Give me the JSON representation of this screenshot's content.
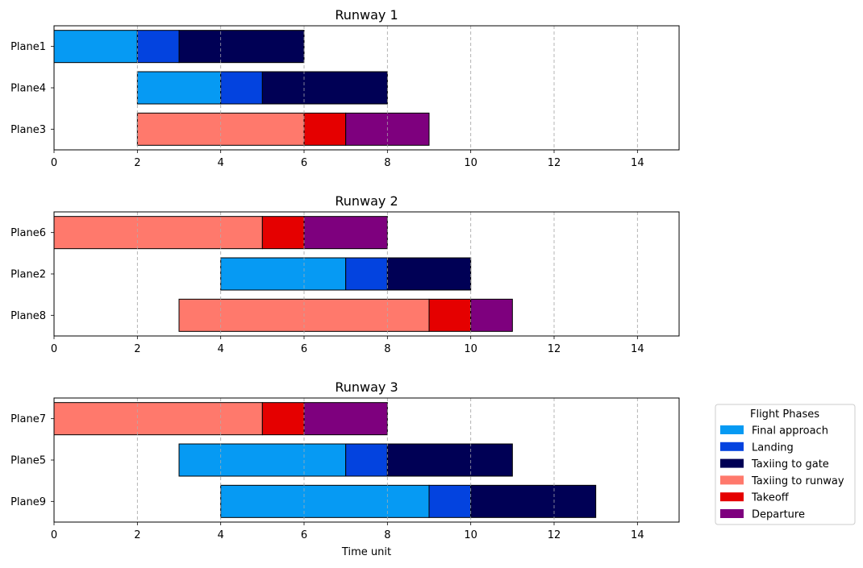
{
  "chart_data": {
    "type": "gantt",
    "xlabel": "Time unit",
    "xlim": [
      0,
      15
    ],
    "xticks": [
      0,
      2,
      4,
      6,
      8,
      10,
      12,
      14
    ],
    "grid": "x-dashed",
    "legend": {
      "title": "Flight Phases",
      "placement": "right-bottom",
      "entries": [
        "Final approach",
        "Landing",
        "Taxiing to gate",
        "Taxiing to runway",
        "Takeoff",
        "Departure"
      ]
    },
    "phase_colors": {
      "Final approach": "#069af3",
      "Landing": "#0343df",
      "Taxiing to gate": "#000055",
      "Taxiing to runway": "#ff796c",
      "Takeoff": "#e50000",
      "Departure": "#7e007e"
    },
    "subplots": [
      {
        "title": "Runway 1",
        "planes": [
          {
            "name": "Plane1",
            "segments": [
              {
                "phase": "Final approach",
                "start": 0,
                "end": 2
              },
              {
                "phase": "Landing",
                "start": 2,
                "end": 3
              },
              {
                "phase": "Taxiing to gate",
                "start": 3,
                "end": 6
              }
            ]
          },
          {
            "name": "Plane4",
            "segments": [
              {
                "phase": "Final approach",
                "start": 2,
                "end": 4
              },
              {
                "phase": "Landing",
                "start": 4,
                "end": 5
              },
              {
                "phase": "Taxiing to gate",
                "start": 5,
                "end": 8
              }
            ]
          },
          {
            "name": "Plane3",
            "segments": [
              {
                "phase": "Taxiing to runway",
                "start": 2,
                "end": 6
              },
              {
                "phase": "Takeoff",
                "start": 6,
                "end": 7
              },
              {
                "phase": "Departure",
                "start": 7,
                "end": 9
              }
            ]
          }
        ]
      },
      {
        "title": "Runway 2",
        "planes": [
          {
            "name": "Plane6",
            "segments": [
              {
                "phase": "Taxiing to runway",
                "start": 0,
                "end": 5
              },
              {
                "phase": "Takeoff",
                "start": 5,
                "end": 6
              },
              {
                "phase": "Departure",
                "start": 6,
                "end": 8
              }
            ]
          },
          {
            "name": "Plane2",
            "segments": [
              {
                "phase": "Final approach",
                "start": 4,
                "end": 7
              },
              {
                "phase": "Landing",
                "start": 7,
                "end": 8
              },
              {
                "phase": "Taxiing to gate",
                "start": 8,
                "end": 10
              }
            ]
          },
          {
            "name": "Plane8",
            "segments": [
              {
                "phase": "Taxiing to runway",
                "start": 3,
                "end": 9
              },
              {
                "phase": "Takeoff",
                "start": 9,
                "end": 10
              },
              {
                "phase": "Departure",
                "start": 10,
                "end": 11
              }
            ]
          }
        ]
      },
      {
        "title": "Runway 3",
        "planes": [
          {
            "name": "Plane7",
            "segments": [
              {
                "phase": "Taxiing to runway",
                "start": 0,
                "end": 5
              },
              {
                "phase": "Takeoff",
                "start": 5,
                "end": 6
              },
              {
                "phase": "Departure",
                "start": 6,
                "end": 8
              }
            ]
          },
          {
            "name": "Plane5",
            "segments": [
              {
                "phase": "Final approach",
                "start": 3,
                "end": 7
              },
              {
                "phase": "Landing",
                "start": 7,
                "end": 8
              },
              {
                "phase": "Taxiing to gate",
                "start": 8,
                "end": 11
              }
            ]
          },
          {
            "name": "Plane9",
            "segments": [
              {
                "phase": "Final approach",
                "start": 4,
                "end": 9
              },
              {
                "phase": "Landing",
                "start": 9,
                "end": 10
              },
              {
                "phase": "Taxiing to gate",
                "start": 10,
                "end": 13
              }
            ]
          }
        ]
      }
    ]
  }
}
